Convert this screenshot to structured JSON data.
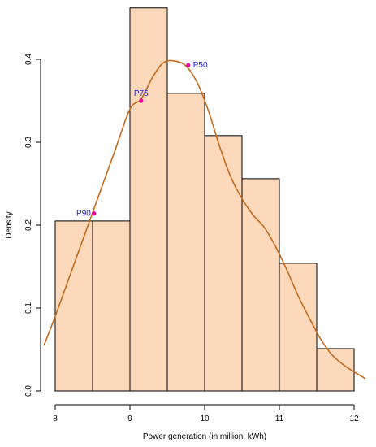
{
  "chart_data": {
    "type": "histogram",
    "xlabel": "Power generation (in million, kWh)",
    "ylabel": "Density",
    "xlim": [
      8,
      12
    ],
    "ylim": [
      0,
      0.45
    ],
    "x_ticks": [
      8,
      9,
      10,
      11,
      12
    ],
    "y_ticks": [
      0.0,
      0.1,
      0.2,
      0.3,
      0.4
    ],
    "y_tick_labels": [
      "0.0",
      "0.1",
      "0.2",
      "0.3",
      "0.4"
    ],
    "bins": [
      {
        "from": 8.0,
        "to": 8.5,
        "density": 0.205
      },
      {
        "from": 8.5,
        "to": 9.0,
        "density": 0.205
      },
      {
        "from": 9.0,
        "to": 9.5,
        "density": 0.462
      },
      {
        "from": 9.5,
        "to": 10.0,
        "density": 0.359
      },
      {
        "from": 10.0,
        "to": 10.5,
        "density": 0.308
      },
      {
        "from": 10.5,
        "to": 11.0,
        "density": 0.256
      },
      {
        "from": 11.0,
        "to": 11.5,
        "density": 0.154
      },
      {
        "from": 11.5,
        "to": 12.0,
        "density": 0.051
      }
    ],
    "density_curve": {
      "x": [
        7.85,
        8.0,
        8.2,
        8.4,
        8.5,
        8.6,
        8.8,
        9.0,
        9.15,
        9.3,
        9.45,
        9.6,
        9.75,
        9.9,
        10.05,
        10.2,
        10.35,
        10.5,
        10.65,
        10.8,
        10.95,
        11.1,
        11.25,
        11.4,
        11.55,
        11.7,
        11.85,
        12.0,
        12.15
      ],
      "y": [
        0.055,
        0.09,
        0.14,
        0.19,
        0.215,
        0.24,
        0.29,
        0.34,
        0.352,
        0.378,
        0.396,
        0.398,
        0.392,
        0.372,
        0.338,
        0.295,
        0.258,
        0.232,
        0.212,
        0.197,
        0.174,
        0.146,
        0.115,
        0.088,
        0.063,
        0.044,
        0.032,
        0.023,
        0.015
      ]
    },
    "annotations": [
      {
        "label": "P90",
        "x": 8.52,
        "y": 0.214,
        "anchor": "end"
      },
      {
        "label": "P75",
        "x": 9.15,
        "y": 0.35,
        "anchor": "middle"
      },
      {
        "label": "P50",
        "x": 9.78,
        "y": 0.393,
        "anchor": "start"
      }
    ],
    "colors": {
      "bar_fill": "#fdd9bb",
      "bar_stroke": "#000000",
      "curve": "#c46a1e",
      "point": "#e8009c",
      "point_label": "#1c1ccc",
      "axis": "#000000"
    }
  }
}
